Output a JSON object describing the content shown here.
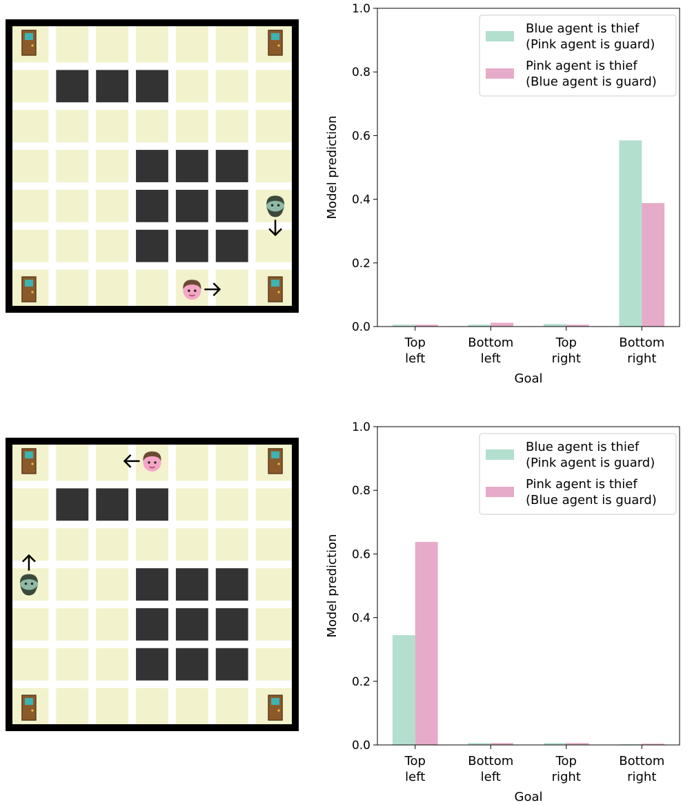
{
  "colors": {
    "thief_blue": "#b3dfcf",
    "thief_pink": "#e6abc8",
    "floor": "#f2f2cc",
    "wall": "#333333",
    "border": "#000000",
    "gap": "#ffffff"
  },
  "icons": {
    "door": "door-icon",
    "blue_agent": "bearded-man-icon",
    "pink_agent": "boy-face-icon",
    "arrow": "arrow-icon"
  },
  "gridworlds": [
    {
      "rows": 7,
      "cols": 7,
      "walls": [
        [
          1,
          1
        ],
        [
          1,
          2
        ],
        [
          1,
          3
        ],
        [
          3,
          3
        ],
        [
          3,
          4
        ],
        [
          3,
          5
        ],
        [
          4,
          3
        ],
        [
          4,
          4
        ],
        [
          4,
          5
        ],
        [
          5,
          3
        ],
        [
          5,
          4
        ],
        [
          5,
          5
        ]
      ],
      "doors": [
        [
          0,
          0
        ],
        [
          0,
          6
        ],
        [
          6,
          0
        ],
        [
          6,
          6
        ]
      ],
      "blue_agent": {
        "row": 4,
        "col": 6,
        "direction": "down"
      },
      "pink_agent": {
        "row": 6,
        "col": 4,
        "direction": "right"
      }
    },
    {
      "rows": 7,
      "cols": 7,
      "walls": [
        [
          1,
          1
        ],
        [
          1,
          2
        ],
        [
          1,
          3
        ],
        [
          3,
          3
        ],
        [
          3,
          4
        ],
        [
          3,
          5
        ],
        [
          4,
          3
        ],
        [
          4,
          4
        ],
        [
          4,
          5
        ],
        [
          5,
          3
        ],
        [
          5,
          4
        ],
        [
          5,
          5
        ]
      ],
      "doors": [
        [
          0,
          0
        ],
        [
          0,
          6
        ],
        [
          6,
          0
        ],
        [
          6,
          6
        ]
      ],
      "blue_agent": {
        "row": 3,
        "col": 0,
        "direction": "up"
      },
      "pink_agent": {
        "row": 0,
        "col": 3,
        "direction": "left"
      }
    }
  ],
  "chart_data": [
    {
      "type": "bar",
      "categories": [
        [
          "Top",
          "left"
        ],
        [
          "Bottom",
          "left"
        ],
        [
          "Top",
          "right"
        ],
        [
          "Bottom",
          "right"
        ]
      ],
      "series": [
        {
          "name": [
            "Blue agent is thief",
            "(Pink agent is guard)"
          ],
          "values": [
            0.006,
            0.006,
            0.008,
            0.585
          ]
        },
        {
          "name": [
            "Pink agent is thief",
            "(Blue agent is guard)"
          ],
          "values": [
            0.006,
            0.012,
            0.006,
            0.388
          ]
        }
      ],
      "xlabel": "Goal",
      "ylabel": "Model prediction",
      "ylim": [
        0,
        1.0
      ],
      "yticks": [
        "0.0",
        "0.2",
        "0.4",
        "0.6",
        "0.8",
        "1.0"
      ],
      "legend": "top-right"
    },
    {
      "type": "bar",
      "categories": [
        [
          "Top",
          "left"
        ],
        [
          "Bottom",
          "left"
        ],
        [
          "Top",
          "right"
        ],
        [
          "Bottom",
          "right"
        ]
      ],
      "series": [
        {
          "name": [
            "Blue agent is thief",
            "(Pink agent is guard)"
          ],
          "values": [
            0.345,
            0.006,
            0.006,
            0.002
          ]
        },
        {
          "name": [
            "Pink agent is thief",
            "(Blue agent is guard)"
          ],
          "values": [
            0.638,
            0.006,
            0.006,
            0.004
          ]
        }
      ],
      "xlabel": "Goal",
      "ylabel": "Model prediction",
      "ylim": [
        0,
        1.0
      ],
      "yticks": [
        "0.0",
        "0.2",
        "0.4",
        "0.6",
        "0.8",
        "1.0"
      ],
      "legend": "top-right"
    }
  ]
}
